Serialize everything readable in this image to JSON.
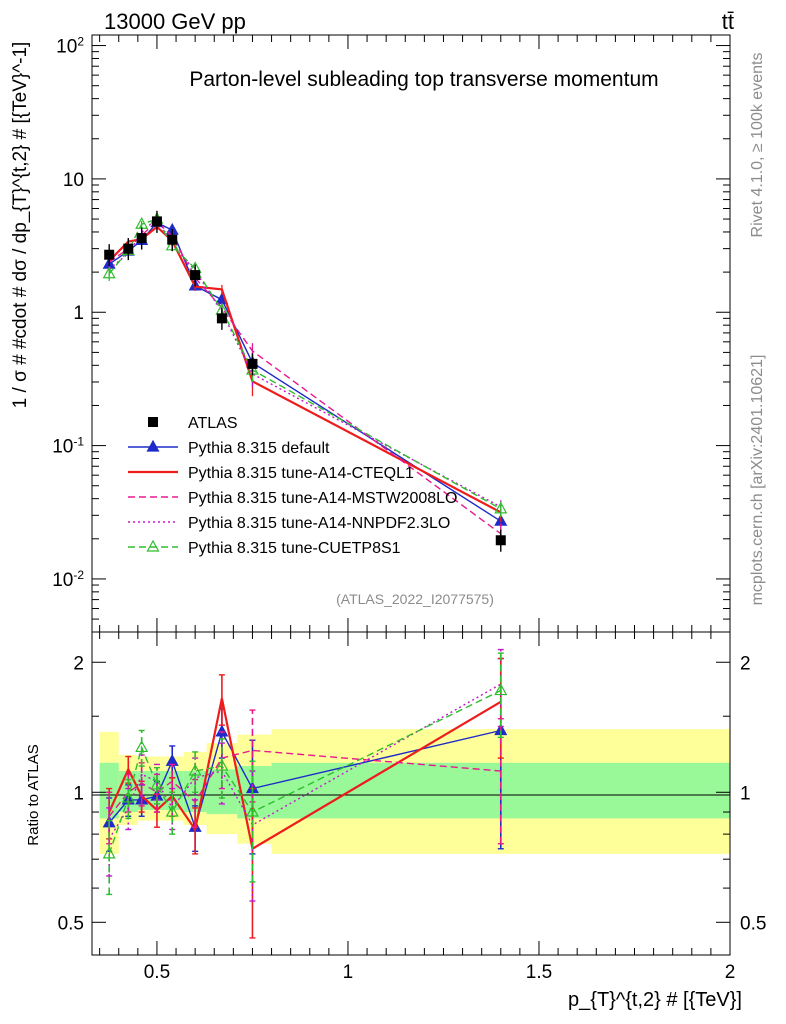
{
  "header": {
    "energy_label": "13000 GeV pp",
    "process_label": "tt̄",
    "title": "Parton-level subleading top transverse momentum",
    "side_label_top": "Rivet 4.1.0, ≥ 100k events",
    "side_label_bottom": "mcplots.cern.ch [arXiv:2401.10621]",
    "analysis_label": "(ATLAS_2022_I2077575)"
  },
  "axes": {
    "main_ylabel": "1 / σ # #cdot # dσ / dp_{T}^{t,2} # [{TeV}^-1]",
    "ratio_ylabel": "Ratio to ATLAS",
    "xlabel": "p_{T}^{t,2} # [{TeV}]",
    "main_yticks": [
      "10^-2",
      "10^-1",
      "1",
      "10",
      "10^2"
    ],
    "ratio_yticks": [
      "0.5",
      "1",
      "2"
    ],
    "xticks": [
      "0.5",
      "1",
      "1.5",
      "2"
    ]
  },
  "chart_data": {
    "type": "line",
    "xlim": [
      0.33,
      2.0
    ],
    "main_ylim": [
      0.004,
      120
    ],
    "ratio_ylim": [
      0.42,
      2.35
    ],
    "y_scale": "log",
    "legend_position": "lower-left",
    "reference": {
      "name": "ATLAS",
      "color": "#000000",
      "x": [
        0.375,
        0.425,
        0.46,
        0.5,
        0.54,
        0.6,
        0.67,
        0.75,
        1.4
      ],
      "y": [
        2.7,
        3.0,
        3.6,
        4.8,
        3.5,
        1.9,
        0.9,
        0.41,
        0.0195
      ]
    },
    "bands": {
      "edges": [
        0.35,
        0.4,
        0.45,
        0.48,
        0.52,
        0.57,
        0.63,
        0.71,
        0.8,
        2.0
      ],
      "inner_low": [
        0.87,
        0.9,
        0.91,
        0.91,
        0.91,
        0.9,
        0.89,
        0.87,
        0.87
      ],
      "inner_high": [
        1.17,
        1.12,
        1.12,
        1.12,
        1.12,
        1.12,
        1.13,
        1.15,
        1.17
      ],
      "outer_low": [
        0.72,
        0.84,
        0.86,
        0.86,
        0.86,
        0.84,
        0.8,
        0.76,
        0.72
      ],
      "outer_high": [
        1.38,
        1.22,
        1.21,
        1.21,
        1.21,
        1.24,
        1.3,
        1.36,
        1.4
      ],
      "inner_color": "#99f999",
      "outer_color": "#ffff99"
    },
    "series": [
      {
        "name": "Pythia 8.315 default",
        "color": "#1f2bc8",
        "style": "solid",
        "marker": "triangle-filled",
        "x": [
          0.375,
          0.425,
          0.46,
          0.5,
          0.54,
          0.6,
          0.67,
          0.75,
          1.4
        ],
        "ratio": [
          0.85,
          0.96,
          0.96,
          0.98,
          1.18,
          0.83,
          1.38,
          1.02,
          1.39
        ],
        "err": [
          0.12,
          0.08,
          0.08,
          0.08,
          0.1,
          0.1,
          0.18,
          0.3,
          0.65
        ]
      },
      {
        "name": "Pythia 8.315 tune-A14-CTEQL1",
        "color": "#ee1c1c",
        "style": "solid",
        "marker": "none",
        "x": [
          0.375,
          0.425,
          0.46,
          0.5,
          0.54,
          0.6,
          0.67,
          0.75,
          1.4
        ],
        "ratio": [
          0.9,
          1.13,
          0.98,
          0.91,
          0.98,
          0.82,
          1.65,
          0.74,
          1.62
        ],
        "err": [
          0.12,
          0.08,
          0.08,
          0.08,
          0.1,
          0.1,
          0.22,
          0.28,
          0.42
        ]
      },
      {
        "name": "Pythia 8.315 tune-A14-MSTW2008LO",
        "color": "#e8188e",
        "style": "dashed",
        "marker": "none",
        "x": [
          0.375,
          0.425,
          0.46,
          0.5,
          0.54,
          0.6,
          0.67,
          0.75,
          1.4
        ],
        "ratio": [
          0.88,
          1.0,
          1.05,
          1.0,
          1.06,
          0.95,
          1.2,
          1.25,
          1.12
        ],
        "err": [
          0.12,
          0.1,
          0.12,
          0.1,
          0.1,
          0.12,
          0.18,
          0.3,
          0.36
        ]
      },
      {
        "name": "Pythia 8.315 tune-A14-NNPDF2.3LO",
        "color": "#c218cc",
        "style": "dotted",
        "marker": "none",
        "x": [
          0.375,
          0.425,
          0.46,
          0.5,
          0.54,
          0.6,
          0.67,
          0.75,
          1.4
        ],
        "ratio": [
          0.78,
          0.92,
          1.1,
          1.06,
          0.92,
          1.08,
          1.12,
          0.84,
          1.78
        ],
        "err": [
          0.14,
          0.1,
          0.12,
          0.1,
          0.1,
          0.12,
          0.18,
          0.28,
          0.36
        ]
      },
      {
        "name": "Pythia 8.315 tune-CUETP8S1",
        "color": "#2fbd2f",
        "style": "dashed",
        "marker": "triangle-open",
        "x": [
          0.375,
          0.425,
          0.46,
          0.5,
          0.54,
          0.6,
          0.67,
          0.75,
          1.4
        ],
        "ratio": [
          0.72,
          0.97,
          1.27,
          1.04,
          0.9,
          1.12,
          1.15,
          0.9,
          1.72
        ],
        "err": [
          0.14,
          0.1,
          0.12,
          0.1,
          0.1,
          0.12,
          0.18,
          0.28,
          0.38
        ]
      }
    ]
  }
}
